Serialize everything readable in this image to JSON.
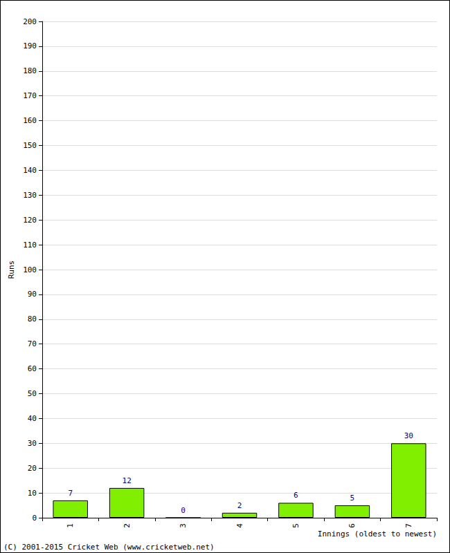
{
  "chart_data": {
    "type": "bar",
    "x_label": "Innings (oldest to newest)",
    "y_label": "Runs",
    "categories": [
      "1",
      "2",
      "3",
      "4",
      "5",
      "6",
      "7"
    ],
    "values": [
      7,
      12,
      0,
      2,
      6,
      5,
      30
    ],
    "color": "#80f000",
    "ylim": [
      0,
      200
    ],
    "yticks": [
      0,
      10,
      20,
      30,
      40,
      50,
      60,
      70,
      80,
      90,
      100,
      110,
      120,
      130,
      140,
      150,
      160,
      170,
      180,
      190,
      200
    ],
    "grid": true,
    "data_labels": true,
    "annotations": [
      "(C) 2001-2015 Cricket Web (www.cricketweb.net)"
    ]
  }
}
